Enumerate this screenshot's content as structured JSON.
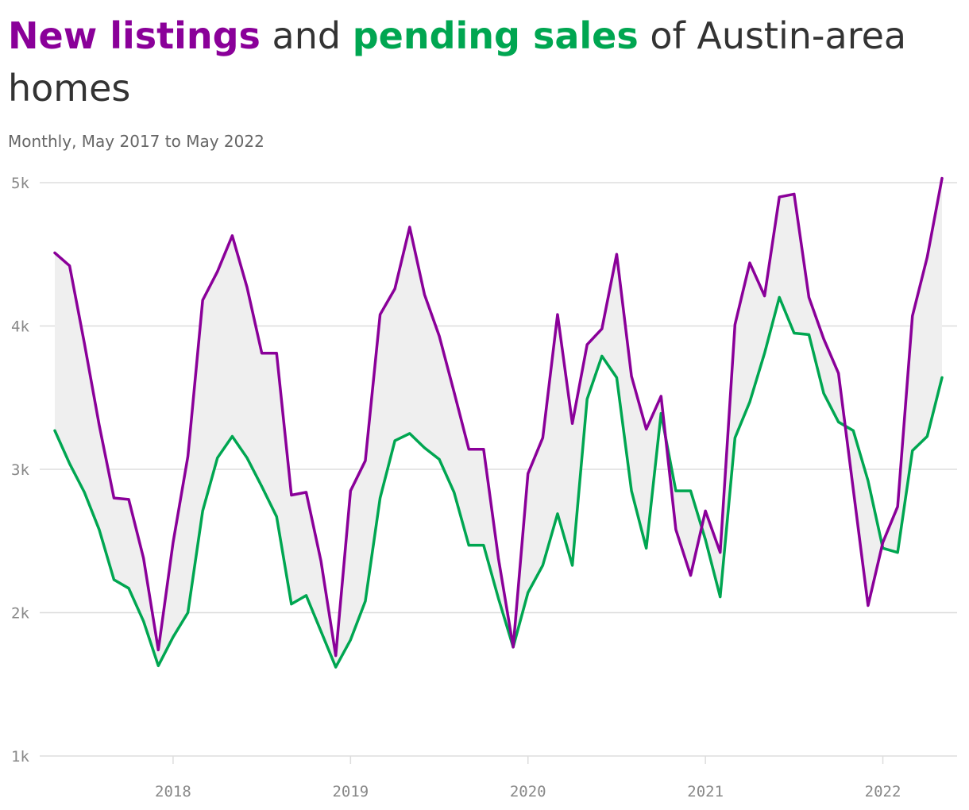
{
  "title": {
    "part1": "New listings",
    "part2": " and ",
    "part3": "pending sales",
    "part4": " of Austin-area homes"
  },
  "subtitle": "Monthly, May 2017 to May 2022",
  "colors": {
    "new_listings": "#8A0099",
    "pending_sales": "#00A651",
    "gap_fill": "#EFEFEF",
    "grid": "#DDDDDD",
    "title_text": "#333333",
    "tick_text": "#888888"
  },
  "chart_data": {
    "type": "line",
    "title": "New listings and pending sales of Austin-area homes",
    "subtitle": "Monthly, May 2017 to May 2022",
    "xlabel": "",
    "ylabel": "",
    "x": [
      "2017-05",
      "2017-06",
      "2017-07",
      "2017-08",
      "2017-09",
      "2017-10",
      "2017-11",
      "2017-12",
      "2018-01",
      "2018-02",
      "2018-03",
      "2018-04",
      "2018-05",
      "2018-06",
      "2018-07",
      "2018-08",
      "2018-09",
      "2018-10",
      "2018-11",
      "2018-12",
      "2019-01",
      "2019-02",
      "2019-03",
      "2019-04",
      "2019-05",
      "2019-06",
      "2019-07",
      "2019-08",
      "2019-09",
      "2019-10",
      "2019-11",
      "2019-12",
      "2020-01",
      "2020-02",
      "2020-03",
      "2020-04",
      "2020-05",
      "2020-06",
      "2020-07",
      "2020-08",
      "2020-09",
      "2020-10",
      "2020-11",
      "2020-12",
      "2021-01",
      "2021-02",
      "2021-03",
      "2021-04",
      "2021-05",
      "2021-06",
      "2021-07",
      "2021-08",
      "2021-09",
      "2021-10",
      "2021-11",
      "2021-12",
      "2022-01",
      "2022-02",
      "2022-03",
      "2022-04",
      "2022-05"
    ],
    "series": [
      {
        "name": "New listings",
        "color": "#8A0099",
        "values": [
          4510,
          4420,
          3880,
          3310,
          2800,
          2790,
          2380,
          1740,
          2490,
          3090,
          4180,
          4380,
          4630,
          4270,
          3810,
          3810,
          2820,
          2840,
          2360,
          1700,
          2850,
          3060,
          4080,
          4260,
          4690,
          4220,
          3930,
          3540,
          3140,
          3140,
          2380,
          1760,
          2970,
          3220,
          4080,
          3320,
          3870,
          3980,
          4500,
          3650,
          3280,
          3510,
          2580,
          2260,
          2710,
          2420,
          4010,
          4440,
          4210,
          4900,
          4920,
          4200,
          3910,
          3670,
          2860,
          2050,
          2490,
          2740,
          4070,
          4480,
          5030
        ]
      },
      {
        "name": "Pending sales",
        "color": "#00A651",
        "values": [
          3270,
          3040,
          2840,
          2580,
          2230,
          2170,
          1940,
          1630,
          1830,
          2000,
          2710,
          3080,
          3230,
          3080,
          2880,
          2670,
          2060,
          2120,
          1870,
          1620,
          1810,
          2080,
          2800,
          3200,
          3250,
          3150,
          3070,
          2840,
          2470,
          2470,
          2100,
          1760,
          2140,
          2330,
          2690,
          2330,
          3490,
          3790,
          3640,
          2850,
          2450,
          3390,
          2850,
          2850,
          2510,
          2110,
          3220,
          3470,
          3810,
          4200,
          3950,
          3940,
          3530,
          3330,
          3270,
          2920,
          2450,
          2420,
          3130,
          3230,
          3640
        ]
      }
    ],
    "ylim": [
      1000,
      5000
    ],
    "yticks": [
      "1k",
      "2k",
      "3k",
      "4k",
      "5k"
    ],
    "xticks": [
      "2018",
      "2019",
      "2020",
      "2021",
      "2022"
    ],
    "grid": true,
    "legend": "in title"
  }
}
